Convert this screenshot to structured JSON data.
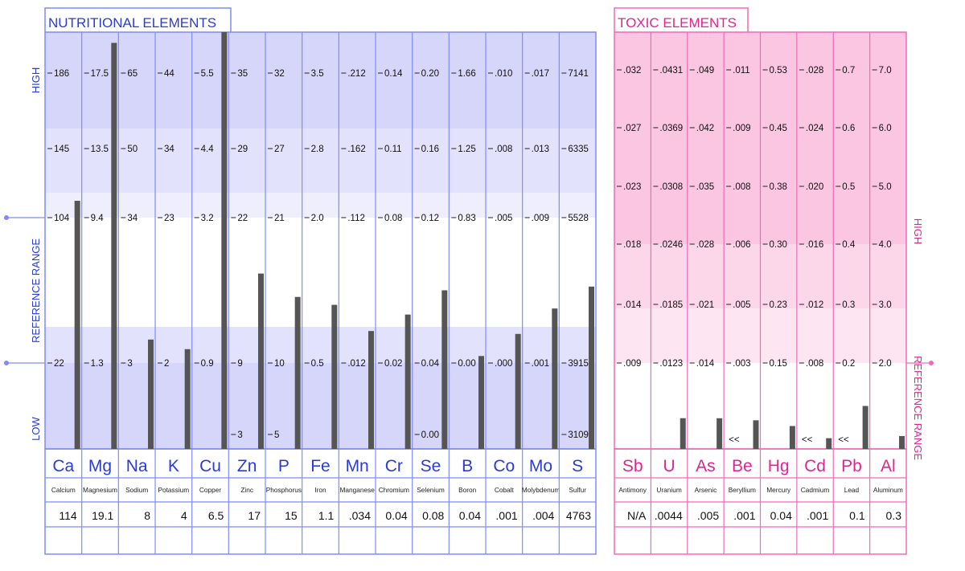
{
  "colors": {
    "nutri_line": "#7f8cf5",
    "nutri_text": "#2a3bd6",
    "nutri_band1": "#d6d6fb",
    "nutri_band2": "#e2e2fc",
    "nutri_band3": "#eeeefd",
    "toxic_line": "#f06ab8",
    "toxic_text": "#e3238f",
    "toxic_band1": "#fbc6e2",
    "toxic_band2": "#fcd7ea",
    "toxic_band3": "#fde6f2",
    "bar": "#555555"
  },
  "nutritional": {
    "title": "NUTRITIONAL  ELEMENTS",
    "label_high": "HIGH",
    "label_range": "REFERENCE  RANGE",
    "label_low": "LOW"
  },
  "toxic": {
    "title": "TOXIC  ELEMENTS",
    "label_high": "HIGH",
    "label_range": "REFERENCE RANGE"
  },
  "chart_data": [
    {
      "type": "bar",
      "title": "NUTRITIONAL  ELEMENTS",
      "scale": "each element has its own scale; ticks align across columns (reference range from tick 1 to tick 4)",
      "series": [
        {
          "symbol": "Ca",
          "name": "Calcium",
          "value": "114",
          "ticks": [
            "22",
            "104",
            "145",
            "186"
          ],
          "low_tick": ""
        },
        {
          "symbol": "Mg",
          "name": "Magnesium",
          "value": "19.1",
          "ticks": [
            "1.3",
            "9.4",
            "13.5",
            "17.5"
          ],
          "low_tick": ""
        },
        {
          "symbol": "Na",
          "name": "Sodium",
          "value": "8",
          "ticks": [
            "3",
            "34",
            "50",
            "65"
          ],
          "low_tick": ""
        },
        {
          "symbol": "K",
          "name": "Potassium",
          "value": "4",
          "ticks": [
            "2",
            "23",
            "34",
            "44"
          ],
          "low_tick": ""
        },
        {
          "symbol": "Cu",
          "name": "Copper",
          "value": "6.5",
          "ticks": [
            "0.9",
            "3.2",
            "4.4",
            "5.5"
          ],
          "low_tick": ""
        },
        {
          "symbol": "Zn",
          "name": "Zinc",
          "value": "17",
          "ticks": [
            "9",
            "22",
            "29",
            "35"
          ],
          "low_tick": "3"
        },
        {
          "symbol": "P",
          "name": "Phosphorus",
          "value": "15",
          "ticks": [
            "10",
            "21",
            "27",
            "32"
          ],
          "low_tick": "5"
        },
        {
          "symbol": "Fe",
          "name": "Iron",
          "value": "1.1",
          "ticks": [
            "0.5",
            "2.0",
            "2.8",
            "3.5"
          ],
          "low_tick": ""
        },
        {
          "symbol": "Mn",
          "name": "Manganese",
          "value": ".034",
          "ticks": [
            ".012",
            ".112",
            ".162",
            ".212"
          ],
          "low_tick": ""
        },
        {
          "symbol": "Cr",
          "name": "Chromium",
          "value": "0.04",
          "ticks": [
            "0.02",
            "0.08",
            "0.11",
            "0.14"
          ],
          "low_tick": ""
        },
        {
          "symbol": "Se",
          "name": "Selenium",
          "value": "0.08",
          "ticks": [
            "0.04",
            "0.12",
            "0.16",
            "0.20"
          ],
          "low_tick": "0.00"
        },
        {
          "symbol": "B",
          "name": "Boron",
          "value": "0.04",
          "ticks": [
            "0.00",
            "0.83",
            "1.25",
            "1.66"
          ],
          "low_tick": ""
        },
        {
          "symbol": "Co",
          "name": "Cobalt",
          "value": ".001",
          "ticks": [
            ".000",
            ".005",
            ".008",
            ".010"
          ],
          "low_tick": ""
        },
        {
          "symbol": "Mo",
          "name": "Molybdenum",
          "value": ".004",
          "ticks": [
            ".001",
            ".009",
            ".013",
            ".017"
          ],
          "low_tick": ""
        },
        {
          "symbol": "S",
          "name": "Sulfur",
          "value": "4763",
          "ticks": [
            "3915",
            "5528",
            "6335",
            "7141"
          ],
          "low_tick": "3109"
        }
      ]
    },
    {
      "type": "bar",
      "title": "TOXIC  ELEMENTS",
      "scale": "each element has its own scale; ticks from reference limit upward",
      "series": [
        {
          "symbol": "Sb",
          "name": "Antimony",
          "value": "N/A",
          "ticks": [
            ".009",
            ".014",
            ".018",
            ".023",
            ".027",
            ".032"
          ],
          "below": ""
        },
        {
          "symbol": "U",
          "name": "Uranium",
          "value": ".0044",
          "ticks": [
            ".0123",
            ".0185",
            ".0246",
            ".0308",
            ".0369",
            ".0431"
          ],
          "below": ""
        },
        {
          "symbol": "As",
          "name": "Arsenic",
          "value": ".005",
          "ticks": [
            ".014",
            ".021",
            ".028",
            ".035",
            ".042",
            ".049"
          ],
          "below": ""
        },
        {
          "symbol": "Be",
          "name": "Beryllium",
          "value": ".001",
          "ticks": [
            ".003",
            ".005",
            ".006",
            ".008",
            ".009",
            ".011"
          ],
          "below": "<<"
        },
        {
          "symbol": "Hg",
          "name": "Mercury",
          "value": "0.04",
          "ticks": [
            "0.15",
            "0.23",
            "0.30",
            "0.38",
            "0.45",
            "0.53"
          ],
          "below": ""
        },
        {
          "symbol": "Cd",
          "name": "Cadmium",
          "value": ".001",
          "ticks": [
            ".008",
            ".012",
            ".016",
            ".020",
            ".024",
            ".028"
          ],
          "below": "<<"
        },
        {
          "symbol": "Pb",
          "name": "Lead",
          "value": "0.1",
          "ticks": [
            "0.2",
            "0.3",
            "0.4",
            "0.5",
            "0.6",
            "0.7"
          ],
          "below": "<<"
        },
        {
          "symbol": "Al",
          "name": "Aluminum",
          "value": "0.3",
          "ticks": [
            "2.0",
            "3.0",
            "4.0",
            "5.0",
            "6.0",
            "7.0"
          ],
          "below": ""
        }
      ]
    }
  ]
}
